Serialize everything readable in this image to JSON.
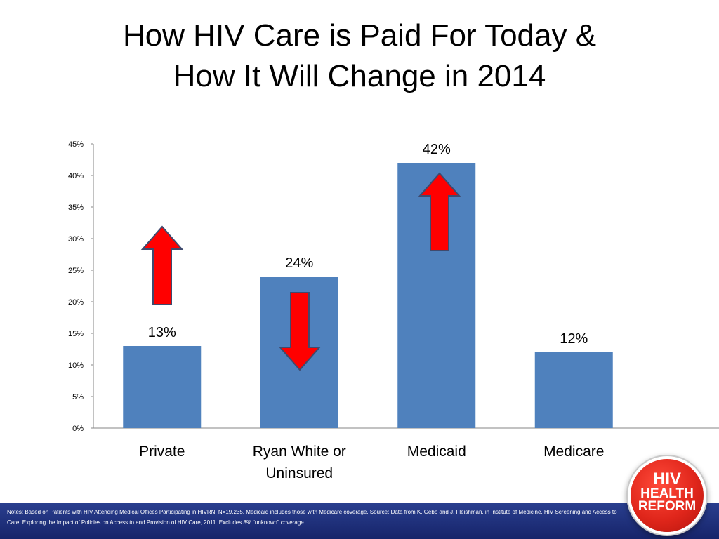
{
  "slide": {
    "title_line1": "How HIV Care is Paid For Today &",
    "title_line2": "How It Will Change in 2014"
  },
  "chart_data": {
    "type": "bar",
    "title": "",
    "xlabel": "",
    "ylabel": "",
    "categories": [
      "Private",
      "Ryan White or\nUninsured",
      "Medicaid",
      "Medicare"
    ],
    "values": [
      13,
      24,
      42,
      12
    ],
    "data_labels": [
      "13%",
      "24%",
      "42%",
      "12%"
    ],
    "ylim": [
      0,
      45
    ],
    "yticks": [
      0,
      5,
      10,
      15,
      20,
      25,
      30,
      35,
      40,
      45
    ],
    "ytick_labels": [
      "0%",
      "5%",
      "10%",
      "15%",
      "20%",
      "25%",
      "30%",
      "35%",
      "40%",
      "45%"
    ],
    "bar_color": "#4f81bd",
    "grid": false,
    "annotations": [
      {
        "category": "Private",
        "direction": "up",
        "color": "#ff0000",
        "meaning": "increase"
      },
      {
        "category": "Ryan White or\nUninsured",
        "direction": "down",
        "color": "#ff0000",
        "meaning": "decrease"
      },
      {
        "category": "Medicaid",
        "direction": "up",
        "color": "#ff0000",
        "meaning": "increase"
      }
    ]
  },
  "footer": {
    "notes": "Notes: Based on Patients with HIV Attending Medical Offices Participating in HIVRN; N=19,235. Medicaid includes those with Medicare coverage. Source: Data from K. Gebo and J. Fleishman, in Institute of Medicine, HIV Screening and Access to Care: Exploring the Impact of Policies on Access to and Provision of HIV Care, 2011. Excludes 8% “unknown” coverage.",
    "logo_line1": "HIV",
    "logo_line2": "HEALTH",
    "logo_line3": "REFORM"
  }
}
